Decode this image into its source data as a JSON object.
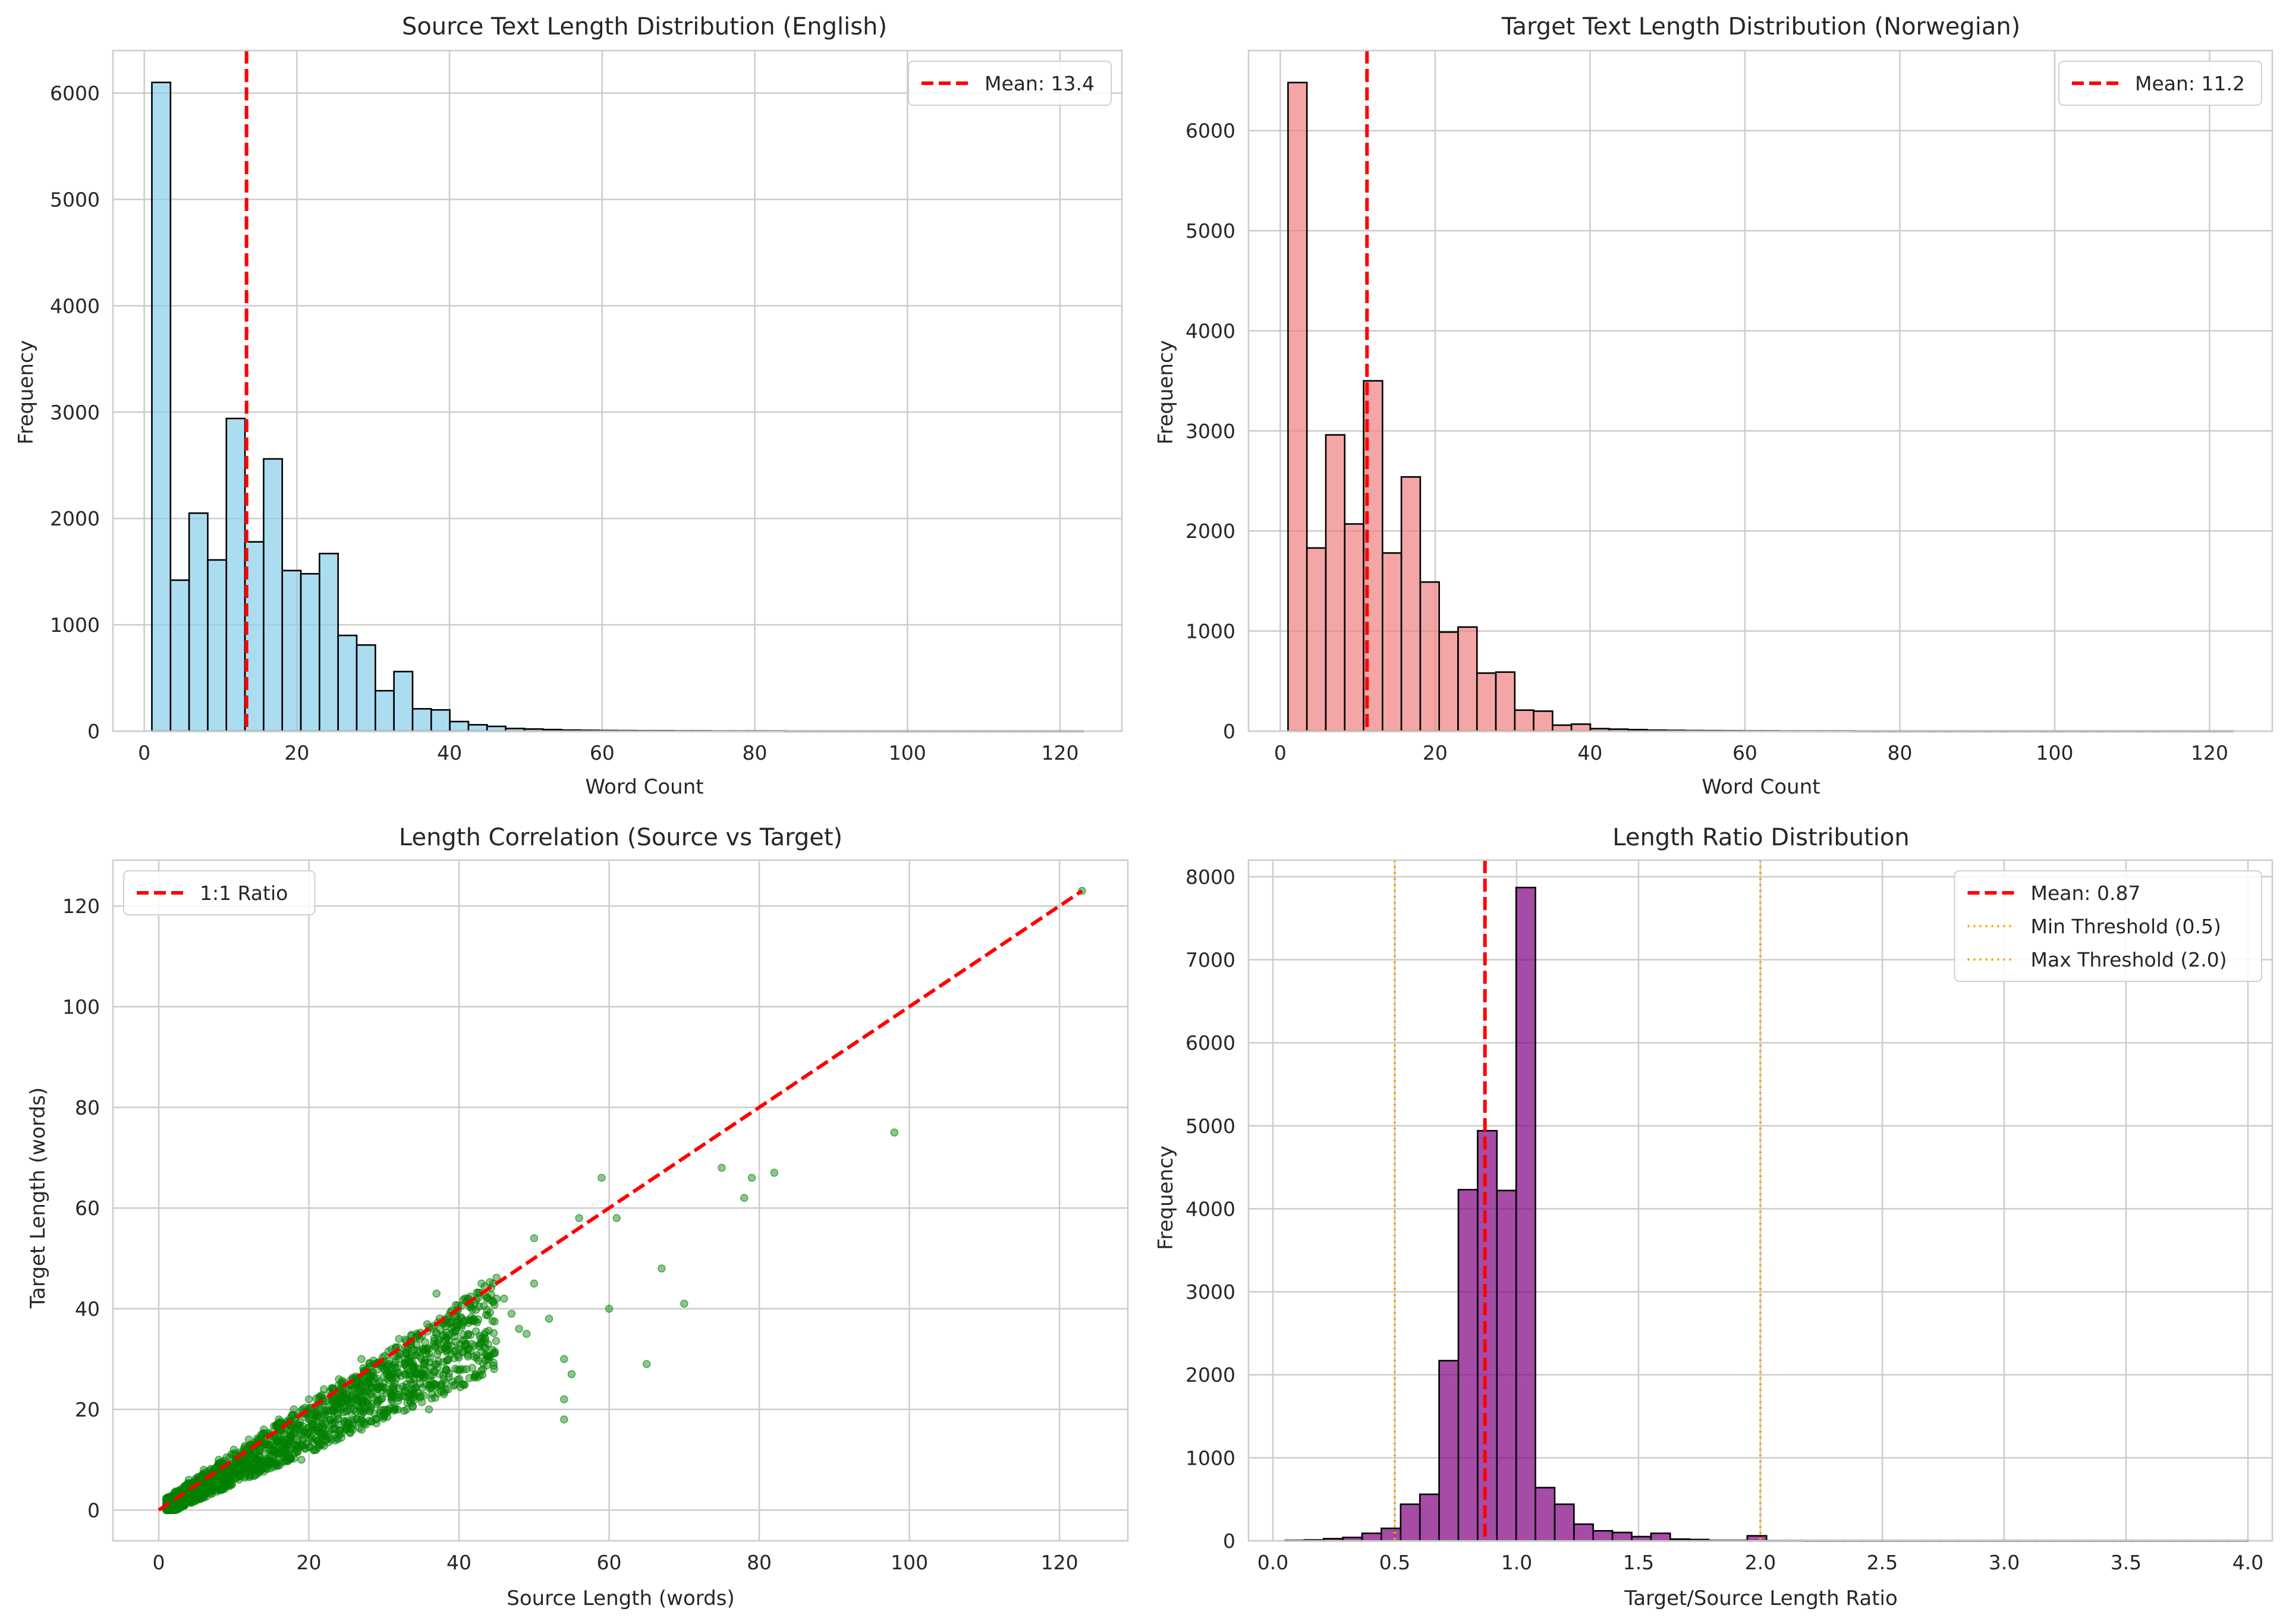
{
  "figure": {
    "colors": {
      "grid": "#cccccc",
      "spine": "#cccccc",
      "text": "#262626",
      "mean_line": "#ff0000",
      "threshold_line": "#ffa500",
      "bar_edge": "#000000"
    }
  },
  "chart_data": [
    {
      "id": "source-hist",
      "type": "bar",
      "title": "Source Text Length Distribution (English)",
      "xlabel": "Word Count",
      "ylabel": "Frequency",
      "xlim": [
        -4.1,
        128.1
      ],
      "ylim": [
        0,
        6400
      ],
      "xticks": [
        0,
        20,
        40,
        60,
        80,
        100,
        120
      ],
      "yticks": [
        0,
        1000,
        2000,
        3000,
        4000,
        5000,
        6000
      ],
      "xtick_labels": [
        "0",
        "20",
        "40",
        "60",
        "80",
        "100",
        "120"
      ],
      "ytick_labels": [
        "0",
        "1000",
        "2000",
        "3000",
        "4000",
        "5000",
        "6000"
      ],
      "grid": true,
      "color": "#87ceeb",
      "bin_start": 1,
      "bin_width": 2.44,
      "values": [
        6100,
        1420,
        2050,
        1610,
        2940,
        1780,
        2560,
        1510,
        1480,
        1670,
        900,
        810,
        380,
        560,
        210,
        200,
        90,
        60,
        45,
        25,
        20,
        15,
        10,
        8,
        6,
        5,
        4,
        4,
        3,
        3,
        2,
        2,
        2,
        2,
        1,
        1,
        1,
        1,
        1,
        1,
        1,
        1,
        1,
        1,
        1,
        1,
        1,
        1,
        1,
        1
      ],
      "vlines": [
        {
          "x": 13.4,
          "style": "dashed",
          "color": "#ff0000"
        }
      ],
      "legend": [
        {
          "label": "Mean: 13.4",
          "style": "dashed",
          "color": "#ff0000"
        }
      ],
      "legend_position": "upper right"
    },
    {
      "id": "target-hist",
      "type": "bar",
      "title": "Target Text Length Distribution (Norwegian)",
      "xlabel": "Word Count",
      "ylabel": "Frequency",
      "xlim": [
        -4.1,
        128.1
      ],
      "ylim": [
        0,
        6800
      ],
      "xticks": [
        0,
        20,
        40,
        60,
        80,
        100,
        120
      ],
      "yticks": [
        0,
        1000,
        2000,
        3000,
        4000,
        5000,
        6000
      ],
      "xtick_labels": [
        "0",
        "20",
        "40",
        "60",
        "80",
        "100",
        "120"
      ],
      "ytick_labels": [
        "0",
        "1000",
        "2000",
        "3000",
        "4000",
        "5000",
        "6000"
      ],
      "grid": true,
      "color": "#f08080",
      "bin_start": 1,
      "bin_width": 2.44,
      "values": [
        6480,
        1830,
        2960,
        2070,
        3500,
        1780,
        2540,
        1490,
        990,
        1040,
        580,
        590,
        210,
        200,
        60,
        70,
        25,
        20,
        15,
        10,
        8,
        6,
        5,
        4,
        3,
        3,
        2,
        2,
        2,
        2,
        1,
        1,
        1,
        1,
        1,
        1,
        1,
        1,
        1,
        1,
        1,
        1,
        1,
        1,
        1,
        1,
        1,
        1,
        1,
        1
      ],
      "vlines": [
        {
          "x": 11.2,
          "style": "dashed",
          "color": "#ff0000"
        }
      ],
      "legend": [
        {
          "label": "Mean: 11.2",
          "style": "dashed",
          "color": "#ff0000"
        }
      ],
      "legend_position": "upper right"
    },
    {
      "id": "correlation",
      "type": "scatter",
      "title": "Length Correlation (Source vs Target)",
      "xlabel": "Source Length (words)",
      "ylabel": "Target Length (words)",
      "xlim": [
        -6.1,
        129.1
      ],
      "ylim": [
        -6.1,
        129.1
      ],
      "xticks": [
        0,
        20,
        40,
        60,
        80,
        100,
        120
      ],
      "yticks": [
        0,
        20,
        40,
        60,
        80,
        100,
        120
      ],
      "xtick_labels": [
        "0",
        "20",
        "40",
        "60",
        "80",
        "100",
        "120"
      ],
      "ytick_labels": [
        "0",
        "20",
        "40",
        "60",
        "80",
        "100",
        "120"
      ],
      "grid": true,
      "color": "#008000",
      "points": [
        [
          123,
          123
        ],
        [
          98,
          75
        ],
        [
          82,
          67
        ],
        [
          79,
          66
        ],
        [
          78,
          62
        ],
        [
          75,
          68
        ],
        [
          70,
          41
        ],
        [
          67,
          48
        ],
        [
          65,
          29
        ],
        [
          61,
          58
        ],
        [
          60,
          40
        ],
        [
          59,
          66
        ],
        [
          56,
          58
        ],
        [
          55,
          27
        ],
        [
          54,
          18
        ],
        [
          54,
          22
        ],
        [
          54,
          30
        ],
        [
          52,
          38
        ],
        [
          50,
          45
        ],
        [
          50,
          54
        ],
        [
          48,
          36
        ],
        [
          46,
          42
        ],
        [
          44,
          30
        ],
        [
          42,
          38
        ],
        [
          40,
          32
        ],
        [
          38,
          26
        ],
        [
          37,
          43
        ],
        [
          36,
          20
        ],
        [
          35,
          30
        ],
        [
          32,
          34
        ],
        [
          31,
          22
        ],
        [
          30,
          28
        ],
        [
          29,
          18
        ],
        [
          28,
          25
        ],
        [
          27,
          30
        ],
        [
          26,
          20
        ],
        [
          25,
          23
        ],
        [
          24,
          17
        ],
        [
          23,
          21
        ],
        [
          22,
          19
        ],
        [
          21,
          16
        ],
        [
          20,
          18
        ],
        [
          19,
          15
        ],
        [
          18,
          17
        ],
        [
          17,
          13
        ],
        [
          16,
          14
        ],
        [
          15,
          12
        ],
        [
          14,
          13
        ],
        [
          13,
          10
        ],
        [
          12,
          11
        ],
        [
          11,
          9
        ],
        [
          10,
          9
        ],
        [
          9,
          7
        ],
        [
          8,
          7
        ],
        [
          7,
          6
        ],
        [
          6,
          5
        ],
        [
          5,
          4
        ],
        [
          4,
          4
        ],
        [
          3,
          2
        ],
        [
          2,
          2
        ],
        [
          1,
          1
        ],
        [
          43,
          45
        ],
        [
          45,
          42
        ],
        [
          47,
          39
        ],
        [
          49,
          35
        ],
        [
          41,
          28
        ],
        [
          39,
          36
        ],
        [
          34,
          26
        ],
        [
          33,
          31
        ],
        [
          24,
          26
        ],
        [
          22,
          24
        ],
        [
          20,
          22
        ],
        [
          18,
          20
        ],
        [
          16,
          18
        ],
        [
          14,
          16
        ],
        [
          12,
          14
        ],
        [
          10,
          12
        ],
        [
          8,
          10
        ],
        [
          6,
          8
        ],
        [
          4,
          6
        ],
        [
          21,
          12
        ],
        [
          19,
          10
        ],
        [
          23,
          14
        ],
        [
          25,
          16
        ],
        [
          27,
          18
        ],
        [
          29,
          21
        ],
        [
          31,
          23
        ],
        [
          33,
          25
        ],
        [
          35,
          27
        ],
        [
          37,
          29
        ],
        [
          39,
          31
        ],
        [
          41,
          33
        ]
      ],
      "diagonal": {
        "from": [
          0,
          0
        ],
        "to": [
          123,
          123
        ],
        "style": "dashed",
        "color": "#ff0000"
      },
      "legend": [
        {
          "label": "1:1 Ratio",
          "style": "dashed",
          "color": "#ff0000"
        }
      ],
      "legend_position": "upper left"
    },
    {
      "id": "ratio-hist",
      "type": "bar",
      "title": "Length Ratio Distribution",
      "xlabel": "Target/Source Length Ratio",
      "ylabel": "Frequency",
      "xlim": [
        -0.1,
        4.1
      ],
      "ylim": [
        0,
        8200
      ],
      "xticks": [
        0.0,
        0.5,
        1.0,
        1.5,
        2.0,
        2.5,
        3.0,
        3.5,
        4.0
      ],
      "yticks": [
        0,
        1000,
        2000,
        3000,
        4000,
        5000,
        6000,
        7000,
        8000
      ],
      "xtick_labels": [
        "0.0",
        "0.5",
        "1.0",
        "1.5",
        "2.0",
        "2.5",
        "3.0",
        "3.5",
        "4.0"
      ],
      "ytick_labels": [
        "0",
        "1000",
        "2000",
        "3000",
        "4000",
        "5000",
        "6000",
        "7000",
        "8000"
      ],
      "grid": true,
      "color": "#800080",
      "bin_start": 0.05,
      "bin_width": 0.079,
      "values": [
        5,
        10,
        25,
        40,
        90,
        150,
        440,
        560,
        2170,
        4230,
        4940,
        4220,
        7870,
        640,
        440,
        200,
        120,
        100,
        50,
        90,
        20,
        15,
        5,
        5,
        60,
        2,
        2,
        1,
        1,
        1,
        1,
        1,
        1,
        1,
        1,
        1,
        1,
        1,
        1,
        1,
        1,
        1,
        1,
        1,
        1,
        1,
        1,
        1,
        1,
        1
      ],
      "vlines": [
        {
          "x": 0.87,
          "style": "dashed",
          "color": "#ff0000"
        },
        {
          "x": 0.5,
          "style": "dotted",
          "color": "#ffa500"
        },
        {
          "x": 2.0,
          "style": "dotted",
          "color": "#ffa500"
        }
      ],
      "legend": [
        {
          "label": "Mean: 0.87",
          "style": "dashed",
          "color": "#ff0000"
        },
        {
          "label": "Min Threshold (0.5)",
          "style": "dotted",
          "color": "#ffa500"
        },
        {
          "label": "Max Threshold (2.0)",
          "style": "dotted",
          "color": "#ffa500"
        }
      ],
      "legend_position": "upper right"
    }
  ]
}
